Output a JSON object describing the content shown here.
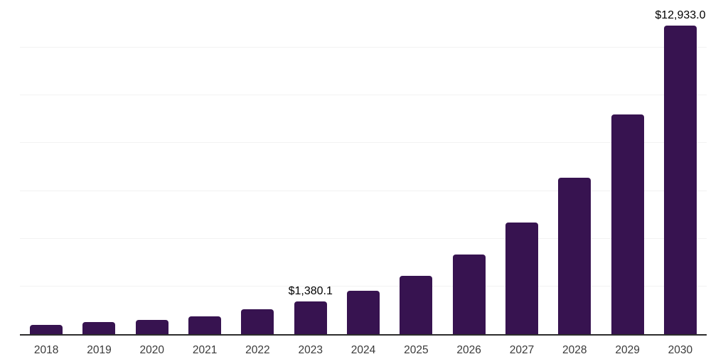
{
  "chart": {
    "background": "#ffffff",
    "bar_color": "#371350",
    "axis_line_color": "#2d2d2d",
    "gridline_color": "#f2f2f2",
    "tick_label_color": "#3a3a3a",
    "data_label_color": "#000000"
  },
  "chart_data": {
    "type": "bar",
    "title": "",
    "xlabel": "",
    "ylabel": "",
    "categories": [
      "2018",
      "2019",
      "2020",
      "2021",
      "2022",
      "2023",
      "2024",
      "2025",
      "2026",
      "2027",
      "2028",
      "2029",
      "2030"
    ],
    "values": [
      400,
      505,
      585,
      740,
      1040,
      1380.1,
      1820,
      2445,
      3340,
      4680,
      6555,
      9210,
      12933.0
    ],
    "data_labels": [
      "",
      "",
      "",
      "",
      "",
      "$1,380.1",
      "",
      "",
      "",
      "",
      "",
      "",
      "$12,933.0"
    ],
    "ylim": [
      0,
      14000
    ],
    "gridline_interval": 2000,
    "grid": true,
    "legend": false
  }
}
